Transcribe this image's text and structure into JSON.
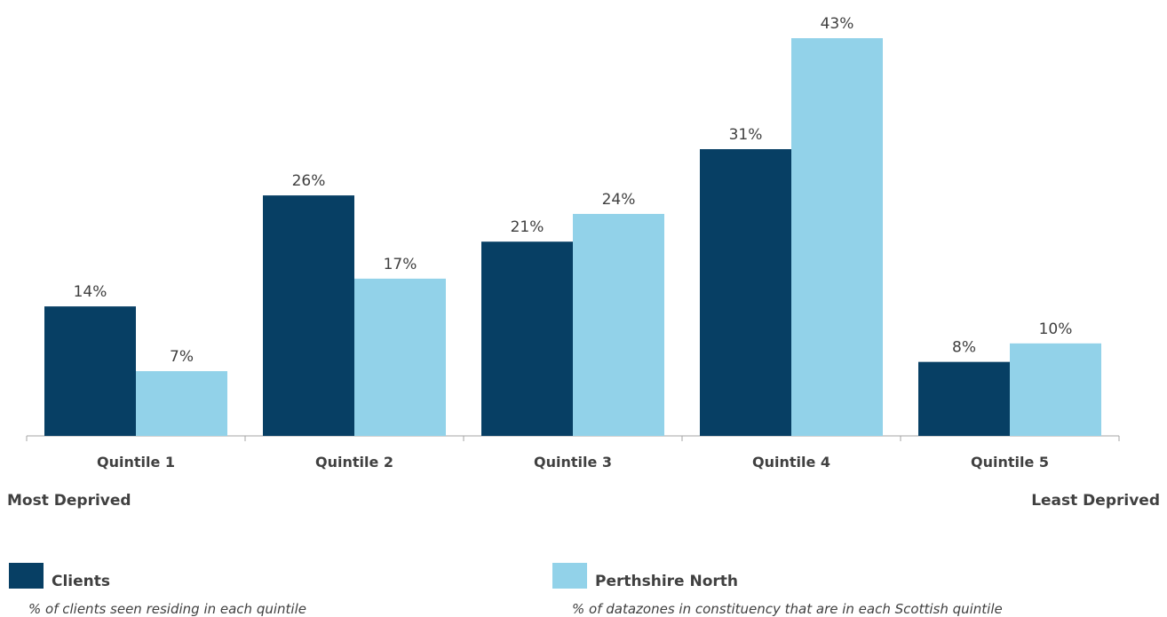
{
  "chart_data": {
    "type": "bar",
    "categories": [
      "Quintile 1",
      "Quintile 2",
      "Quintile 3",
      "Quintile 4",
      "Quintile 5"
    ],
    "series": [
      {
        "name": "Clients",
        "values": [
          14,
          26,
          21,
          31,
          8
        ],
        "color": "#073f64",
        "description": "% of clients seen residing in each quintile"
      },
      {
        "name": "Perthshire North",
        "values": [
          7,
          17,
          24,
          43,
          10
        ],
        "color": "#92d2e9",
        "description": "% of datazones in constituency that are in each Scottish quintile"
      }
    ],
    "value_suffix": "%",
    "ylim": [
      0,
      43
    ],
    "grid": false,
    "legend": "bottom",
    "end_labels": {
      "left": "Most Deprived",
      "right": "Least Deprived"
    }
  }
}
